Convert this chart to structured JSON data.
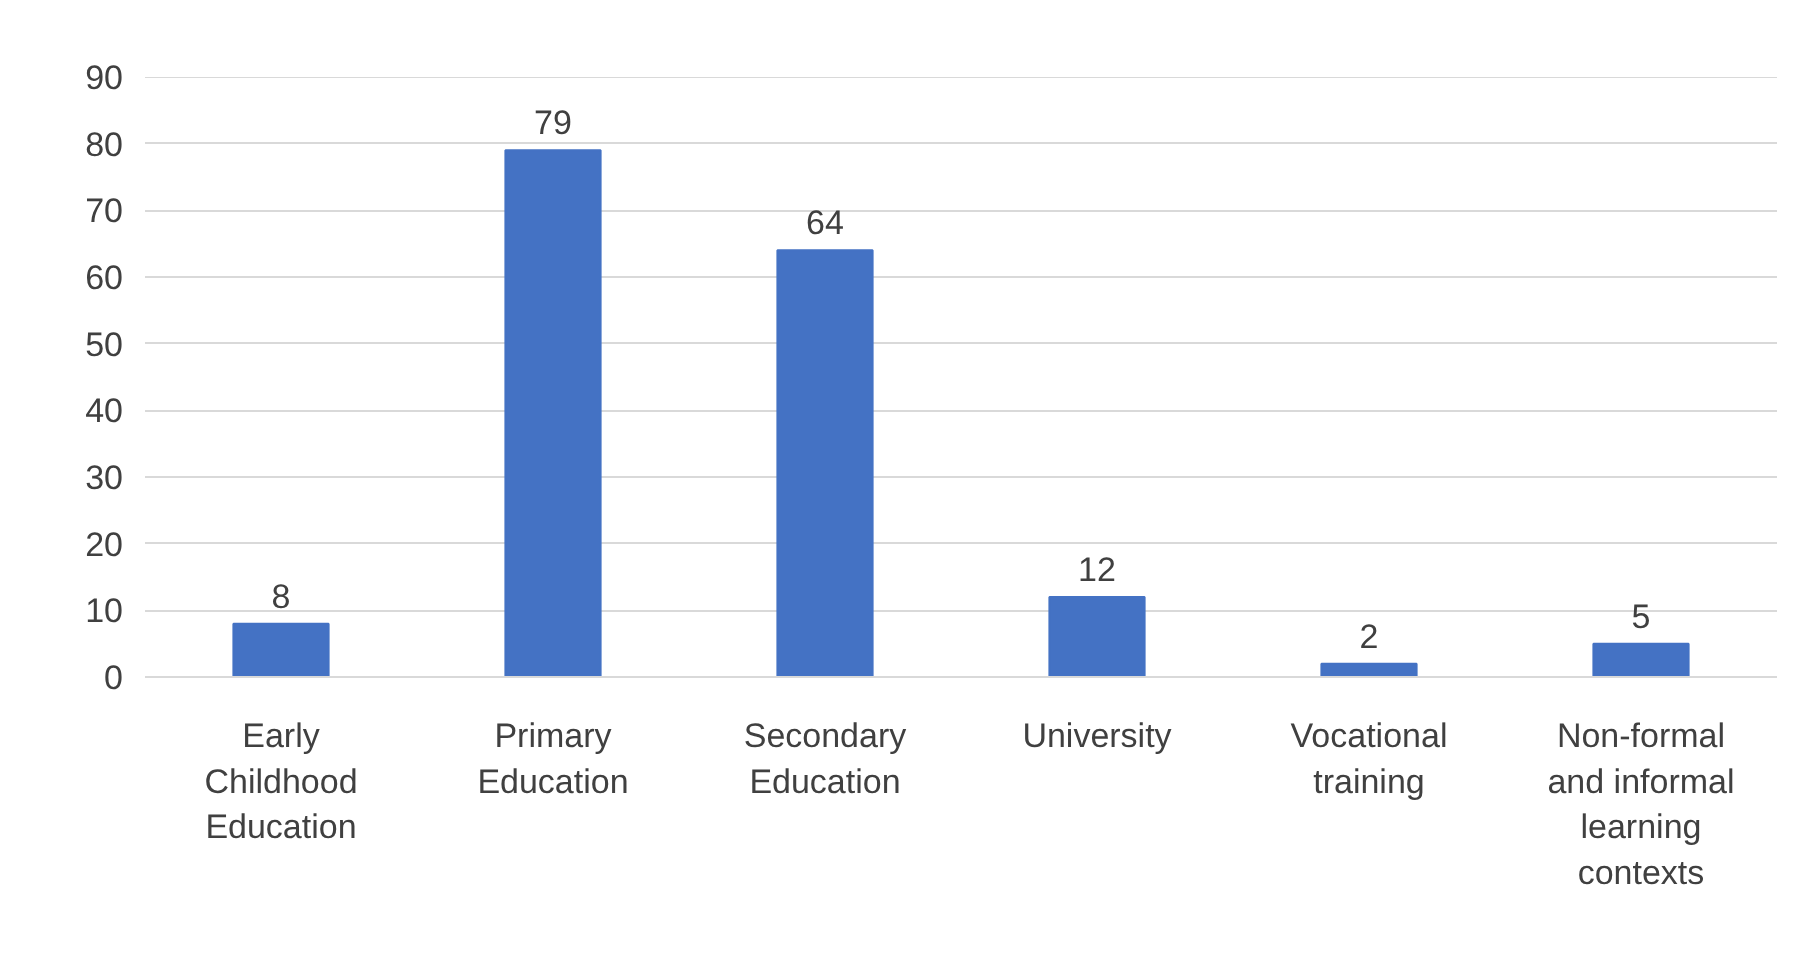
{
  "chart_data": {
    "type": "bar",
    "categories": [
      "Early Childhood Education",
      "Primary Education",
      "Secondary Education",
      "University",
      "Vocational training",
      "Non-formal and informal learning contexts"
    ],
    "values": [
      8,
      79,
      64,
      12,
      2,
      5
    ],
    "color": "#4472c4",
    "ylim": [
      0,
      90
    ],
    "yticks": [
      0,
      10,
      20,
      30,
      40,
      50,
      60,
      70,
      80,
      90
    ],
    "grid": "y",
    "data_labels": true
  }
}
